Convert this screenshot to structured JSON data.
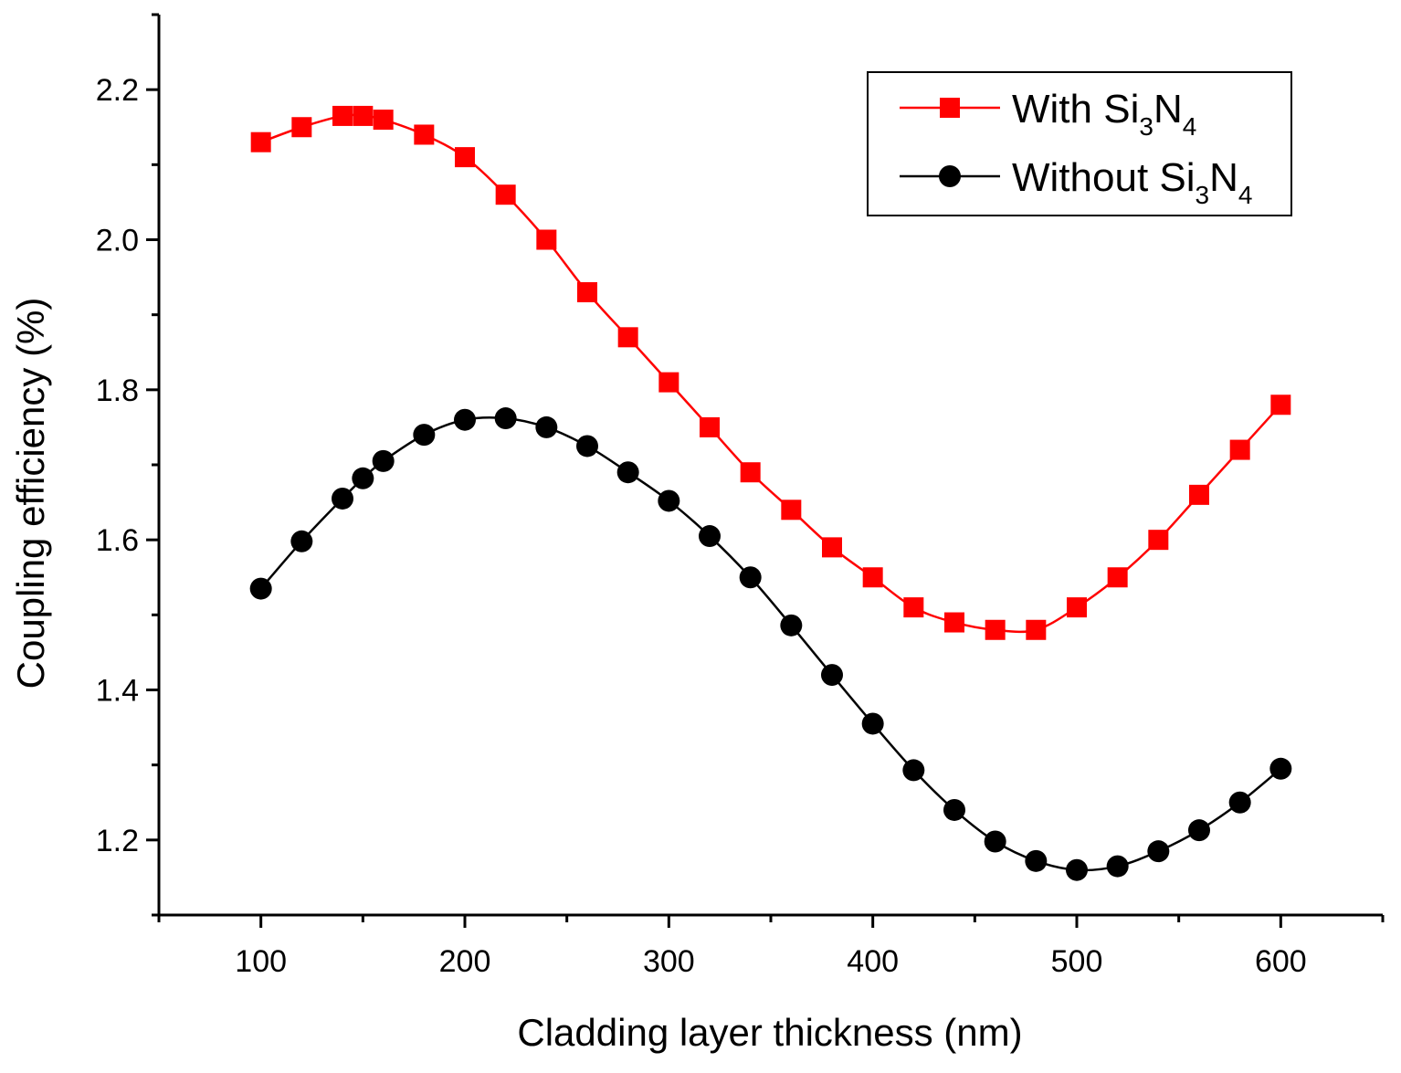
{
  "chart_data": {
    "type": "line",
    "xlabel": "Cladding layer thickness (nm)",
    "ylabel": "Coupling efficiency (%)",
    "xlim": [
      50,
      650
    ],
    "ylim": [
      1.1,
      2.3
    ],
    "xticks": [
      100,
      200,
      300,
      400,
      500,
      600
    ],
    "xticks_minor": [
      50,
      150,
      250,
      350,
      450,
      550,
      650
    ],
    "yticks": [
      1.2,
      1.4,
      1.6,
      1.8,
      2.0,
      2.2
    ],
    "yticks_minor": [
      1.1,
      1.3,
      1.5,
      1.7,
      1.9,
      2.1,
      2.3
    ],
    "grid": false,
    "legend_position": "top-right",
    "series": [
      {
        "name": "With Si3N4",
        "legend": {
          "pre": "With Si",
          "sub1": "3",
          "mid": "N",
          "sub2": "4"
        },
        "color": "#ff0000",
        "marker": "square",
        "x": [
          100,
          120,
          140,
          150,
          160,
          180,
          200,
          220,
          240,
          260,
          280,
          300,
          320,
          340,
          360,
          380,
          400,
          420,
          440,
          460,
          480,
          500,
          520,
          540,
          560,
          580,
          600
        ],
        "y": [
          2.13,
          2.15,
          2.165,
          2.165,
          2.16,
          2.14,
          2.11,
          2.06,
          2.0,
          1.93,
          1.87,
          1.81,
          1.75,
          1.69,
          1.64,
          1.59,
          1.55,
          1.51,
          1.49,
          1.48,
          1.48,
          1.51,
          1.55,
          1.6,
          1.66,
          1.72,
          1.78
        ]
      },
      {
        "name": "Without Si3N4",
        "legend": {
          "pre": "Without Si",
          "sub1": "3",
          "mid": "N",
          "sub2": "4"
        },
        "color": "#000000",
        "marker": "circle",
        "x": [
          100,
          120,
          140,
          150,
          160,
          180,
          200,
          220,
          240,
          260,
          280,
          300,
          320,
          340,
          360,
          380,
          400,
          420,
          440,
          460,
          480,
          500,
          520,
          540,
          560,
          580,
          600
        ],
        "y": [
          1.535,
          1.598,
          1.655,
          1.682,
          1.705,
          1.74,
          1.76,
          1.762,
          1.75,
          1.725,
          1.69,
          1.652,
          1.605,
          1.55,
          1.486,
          1.42,
          1.355,
          1.293,
          1.24,
          1.198,
          1.172,
          1.16,
          1.165,
          1.185,
          1.213,
          1.25,
          1.295
        ]
      }
    ]
  }
}
